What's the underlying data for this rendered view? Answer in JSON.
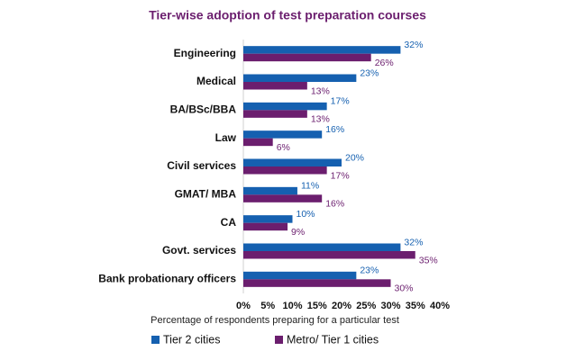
{
  "chart_data": {
    "type": "hbar",
    "title": "Tier-wise adoption of test preparation courses",
    "xlabel": "Percentage of respondents preparing for a particular test",
    "categories": [
      "Engineering",
      "Medical",
      "BA/BSc/BBA",
      "Law",
      "Civil services",
      "GMAT/ MBA",
      "CA",
      "Govt. services",
      "Bank probationary officers"
    ],
    "series": [
      {
        "name": "Tier 2 cities",
        "color": "#1560b0",
        "values": [
          32,
          23,
          17,
          16,
          20,
          11,
          10,
          32,
          23
        ],
        "value_labels": [
          "32%",
          "23%",
          "17%",
          "16%",
          "20%",
          "11%",
          "10%",
          "32%",
          "23%"
        ]
      },
      {
        "name": "Metro/ Tier 1 cities",
        "color": "#6b1e6e",
        "values": [
          26,
          13,
          13,
          6,
          17,
          16,
          9,
          35,
          30
        ],
        "value_labels": [
          "26%",
          "13%",
          "13%",
          "6%",
          "17%",
          "16%",
          "9%",
          "35%",
          "30%"
        ]
      }
    ],
    "xlim": [
      0,
      40
    ],
    "xticks": [
      {
        "value": 0,
        "label": "0%"
      },
      {
        "value": 5,
        "label": "5%"
      },
      {
        "value": 10,
        "label": "10%"
      },
      {
        "value": 15,
        "label": "15%"
      },
      {
        "value": 20,
        "label": "20%"
      },
      {
        "value": 25,
        "label": "25%"
      },
      {
        "value": 30,
        "label": "30%"
      },
      {
        "value": 35,
        "label": "35%"
      },
      {
        "value": 40,
        "label": "40%"
      }
    ],
    "title_color": "#6b1e6e"
  }
}
